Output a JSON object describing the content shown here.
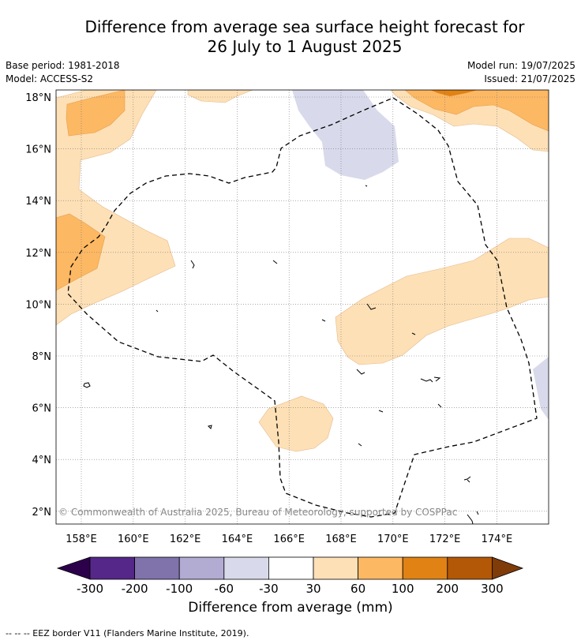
{
  "title": {
    "line1": "Difference from average sea surface height forecast for",
    "line2": "26 July to 1 August 2025"
  },
  "meta": {
    "base_period": "Base period: 1981-2018",
    "model": "Model: ACCESS-S2",
    "model_run": "Model run: 19/07/2025",
    "issued": "Issued: 21/07/2025"
  },
  "map": {
    "lon_range": [
      157,
      176
    ],
    "lat_range": [
      1.4,
      18.3
    ],
    "lon_ticks": [
      "158°E",
      "160°E",
      "162°E",
      "164°E",
      "166°E",
      "168°E",
      "170°E",
      "172°E",
      "174°E"
    ],
    "lat_ticks": [
      "2°N",
      "4°N",
      "6°N",
      "8°N",
      "10°N",
      "12°N",
      "14°N",
      "16°N",
      "18°N"
    ],
    "grid": true,
    "copyright": "© Commonwealth of Australia 2025, Bureau of Meteorology, supported by COSPPac"
  },
  "colorbar": {
    "labels": [
      "-300",
      "-200",
      "-100",
      "-60",
      "-30",
      "30",
      "60",
      "100",
      "200",
      "300"
    ],
    "colors": [
      "#2d004b",
      "#542788",
      "#8073ac",
      "#b2abd2",
      "#d8daeb",
      "#ffffff",
      "#fee0b6",
      "#fdb863",
      "#e08214",
      "#b35806",
      "#7f3b08"
    ],
    "title": "Difference from average (mm)"
  },
  "footer": "--  --  -- EEZ border V11 (Flanders Marine Institute, 2019)."
}
